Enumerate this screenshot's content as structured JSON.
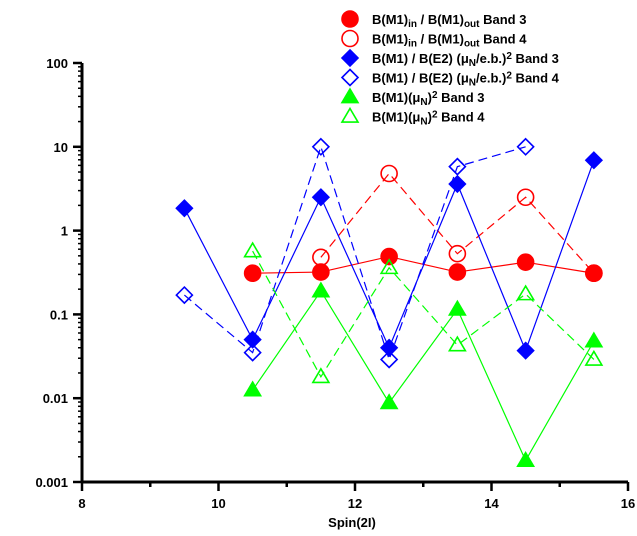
{
  "chart_data": {
    "type": "scatter",
    "xlabel": "Spin(2I)",
    "ylabel": "",
    "xlim": [
      8,
      16
    ],
    "ylim": [
      0.001,
      100
    ],
    "yscale": "log",
    "x_ticks": [
      "8",
      "10",
      "12",
      "14",
      "16"
    ],
    "y_ticks": [
      "0.001",
      "0.01",
      "0.1",
      "1",
      "10",
      "100"
    ],
    "legend_position": "top-right",
    "series": [
      {
        "name": "B(M1)in / B(M1)out Band 3",
        "legend_parts": [
          [
            "B(M1)",
            ""
          ],
          [
            "in",
            "sub"
          ],
          [
            " / B(M1)",
            ""
          ],
          [
            "out",
            "sub"
          ],
          [
            " Band 3",
            ""
          ]
        ],
        "marker": "circle",
        "filled": true,
        "linestyle": "solid",
        "color": "#ff0000",
        "x": [
          10.5,
          11.5,
          12.5,
          13.5,
          14.5,
          15.5
        ],
        "y": [
          0.31,
          0.32,
          0.49,
          0.32,
          0.42,
          0.31
        ]
      },
      {
        "name": "B(M1)in / B(M1)out Band 4",
        "legend_parts": [
          [
            "B(M1)",
            ""
          ],
          [
            "in",
            "sub"
          ],
          [
            " / B(M1)",
            ""
          ],
          [
            "out",
            "sub"
          ],
          [
            " Band 4",
            ""
          ]
        ],
        "marker": "circle",
        "filled": false,
        "linestyle": "dashed",
        "color": "#ff0000",
        "x": [
          11.5,
          12.5,
          13.5,
          14.5,
          15.5
        ],
        "y": [
          0.48,
          4.8,
          0.53,
          2.5,
          0.31
        ]
      },
      {
        "name": "B(M1) / B(E2) (μN/e.b.)2 Band 3",
        "legend_parts": [
          [
            "B(M1) / B(E2) (μ",
            ""
          ],
          [
            "N",
            "sub"
          ],
          [
            "/e.b.)",
            ""
          ],
          [
            "2",
            "sup"
          ],
          [
            " Band 3",
            ""
          ]
        ],
        "marker": "diamond",
        "filled": true,
        "linestyle": "solid",
        "color": "#0000ff",
        "x": [
          9.5,
          10.5,
          11.5,
          12.5,
          13.5,
          14.5,
          15.5
        ],
        "y": [
          1.85,
          0.05,
          2.5,
          0.04,
          3.6,
          0.037,
          6.9
        ]
      },
      {
        "name": "B(M1) / B(E2) (μN/e.b.)2 Band 4",
        "legend_parts": [
          [
            "B(M1) / B(E2) (μ",
            ""
          ],
          [
            "N",
            "sub"
          ],
          [
            "/e.b.)",
            ""
          ],
          [
            "2",
            "sup"
          ],
          [
            " Band 4",
            ""
          ]
        ],
        "marker": "diamond",
        "filled": false,
        "linestyle": "dashed",
        "color": "#0000ff",
        "x": [
          9.5,
          10.5,
          11.5,
          12.5,
          13.5,
          14.5
        ],
        "y": [
          0.17,
          0.035,
          10,
          0.029,
          5.8,
          10
        ]
      },
      {
        "name": "B(M1)(μN)2 Band 3",
        "legend_parts": [
          [
            "B(M1)(μ",
            ""
          ],
          [
            "N",
            "sub"
          ],
          [
            ")",
            ""
          ],
          [
            "2",
            "sup"
          ],
          [
            " Band 3",
            ""
          ]
        ],
        "marker": "triangle",
        "filled": true,
        "linestyle": "solid",
        "color": "#00ff00",
        "x": [
          10.5,
          11.5,
          12.5,
          13.5,
          14.5,
          15.5
        ],
        "y": [
          0.0125,
          0.19,
          0.0088,
          0.115,
          0.0018,
          0.048
        ]
      },
      {
        "name": "B(M1)(μN)2 Band 4",
        "legend_parts": [
          [
            "B(M1)(μ",
            ""
          ],
          [
            "N",
            "sub"
          ],
          [
            ")",
            ""
          ],
          [
            "2",
            "sup"
          ],
          [
            " Band 4",
            ""
          ]
        ],
        "marker": "triangle",
        "filled": false,
        "linestyle": "dashed",
        "color": "#00ff00",
        "x": [
          10.5,
          11.5,
          12.5,
          13.5,
          14.5,
          15.5
        ],
        "y": [
          0.57,
          0.018,
          0.36,
          0.043,
          0.175,
          0.029
        ]
      }
    ]
  }
}
